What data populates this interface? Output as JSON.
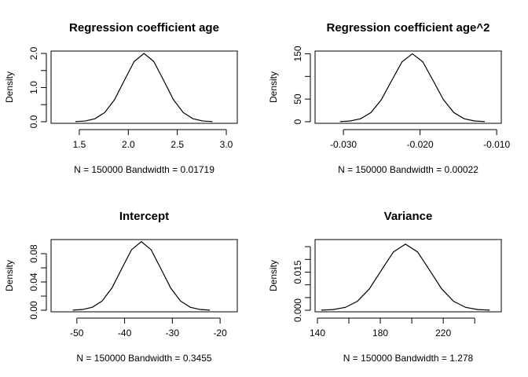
{
  "chart_data": [
    {
      "type": "line",
      "title": "Regression coefficient age",
      "xlabel": "N = 150000   Bandwidth = 0.01719",
      "ylabel": "Density",
      "color": "#000000",
      "x": [
        1.46,
        1.56,
        1.66,
        1.76,
        1.86,
        1.96,
        2.06,
        2.16,
        2.26,
        2.36,
        2.46,
        2.56,
        2.66,
        2.76,
        2.86
      ],
      "values": [
        0.004,
        0.022,
        0.088,
        0.271,
        0.649,
        1.213,
        1.765,
        2.0,
        1.765,
        1.213,
        0.649,
        0.271,
        0.088,
        0.022,
        0.004
      ],
      "xlim": [
        1.212,
        3.112
      ],
      "ylim": [
        -0.046,
        2.07
      ],
      "xticks": [
        1.5,
        {
          "value": 2,
          "label": "2.0"
        },
        2.5,
        {
          "value": 3,
          "label": "3.0"
        }
      ],
      "yticks": [
        {
          "value": 0,
          "label": "0.0"
        },
        {
          "value": 1,
          "label": "1.0"
        },
        {
          "value": 2,
          "label": "2.0"
        }
      ],
      "yminor": [
        0.5,
        1.5
      ]
    },
    {
      "type": "line",
      "title": "Regression coefficient age^2",
      "xlabel": "N = 150000   Bandwidth = 0.00022",
      "ylabel": "Density",
      "color": "#000000",
      "x": [
        -0.03045,
        -0.0291,
        -0.02775,
        -0.0264,
        -0.02505,
        -0.0237,
        -0.02235,
        -0.021,
        -0.01965,
        -0.0183,
        -0.01695,
        -0.0156,
        -0.01425,
        -0.0129,
        -0.01155
      ],
      "values": [
        0.3,
        1.7,
        6.6,
        20.3,
        48.7,
        91,
        132.4,
        150,
        132.4,
        91,
        48.7,
        20.3,
        6.6,
        1.7,
        0.3
      ],
      "xlim": [
        -0.0337,
        -0.0094
      ],
      "ylim": [
        -3.5,
        156
      ],
      "xticks": [
        {
          "value": -0.03,
          "label": "-0.030"
        },
        {
          "value": -0.02,
          "label": "-0.020"
        },
        {
          "value": -0.01,
          "label": "-0.010"
        }
      ],
      "yticks": [
        0,
        50,
        150
      ],
      "yminor": [
        100
      ]
    },
    {
      "type": "line",
      "title": "Intercept",
      "xlabel": "N = 150000   Bandwidth = 0.3455",
      "ylabel": "Density",
      "color": "#000000",
      "x": [
        -50.85,
        -48.8,
        -46.75,
        -44.7,
        -42.65,
        -40.6,
        -38.55,
        -36.5,
        -34.45,
        -32.4,
        -30.35,
        -28.3,
        -26.25,
        -24.2,
        -22.15
      ],
      "values": [
        0.0002,
        0.0011,
        0.0043,
        0.0131,
        0.0315,
        0.0588,
        0.0856,
        0.097,
        0.0856,
        0.0588,
        0.0315,
        0.0131,
        0.0043,
        0.0011,
        0.0002
      ],
      "xlim": [
        -55.4,
        -16.4
      ],
      "ylim": [
        -0.0022,
        0.1
      ],
      "xticks": [
        -50,
        -40,
        -30,
        -20
      ],
      "yticks": [
        {
          "value": 0,
          "label": "0.00"
        },
        {
          "value": 0.04,
          "label": "0.04"
        },
        {
          "value": 0.08,
          "label": "0.08"
        }
      ],
      "yminor": [
        0.02,
        0.06
      ]
    },
    {
      "type": "line",
      "title": "Variance",
      "xlabel": "N = 150000   Bandwidth = 1.278",
      "ylabel": "Density",
      "color": "#000000",
      "x": [
        142.45,
        150.1,
        157.75,
        165.4,
        173.05,
        180.7,
        188.35,
        196,
        203.65,
        211.3,
        218.95,
        226.6,
        234.25,
        241.9,
        249.55
      ],
      "values": [
        6e-05,
        0.00029,
        0.00114,
        0.00352,
        0.00844,
        0.01577,
        0.02295,
        0.026,
        0.02295,
        0.01577,
        0.00844,
        0.00352,
        0.00114,
        0.00029,
        6e-05
      ],
      "xlim": [
        138.5,
        256.9
      ],
      "ylim": [
        -0.0006,
        0.0278
      ],
      "xticks": [
        140,
        180,
        220
      ],
      "xminor": [
        160,
        200,
        240
      ],
      "yticks": [
        {
          "value": 0,
          "label": "0.000"
        },
        {
          "value": 0.015,
          "label": "0.015"
        }
      ],
      "yminor": [
        0.005,
        0.01,
        0.02,
        0.025
      ]
    }
  ]
}
